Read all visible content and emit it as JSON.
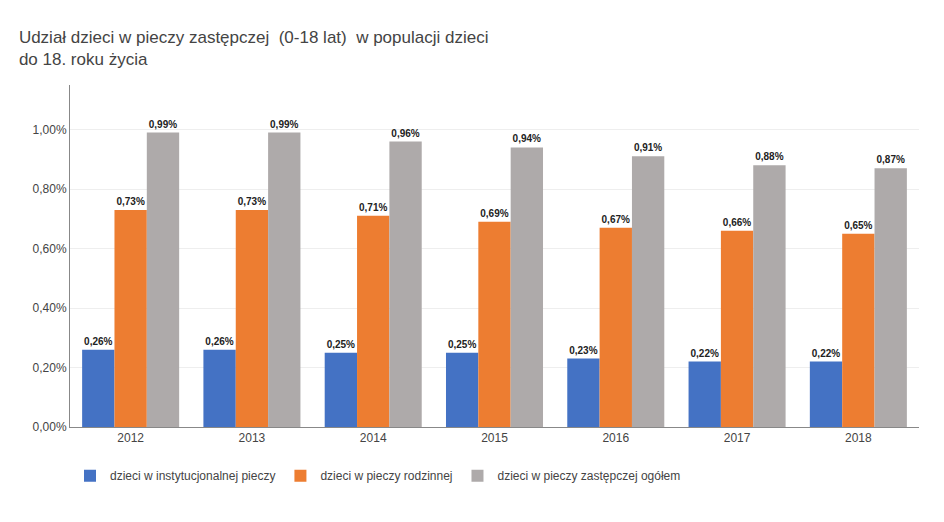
{
  "chart_data": {
    "type": "bar",
    "title": "Udział dzieci w pieczy zastępczej  (0-18 lat)  w populacji dzieci\ndo 18. roku życia",
    "categories": [
      "2012",
      "2013",
      "2014",
      "2015",
      "2016",
      "2017",
      "2018"
    ],
    "series": [
      {
        "name": "dzieci w instytucjonalnej pieczy",
        "color": "#4472C4",
        "values": [
          0.0026,
          0.0026,
          0.0025,
          0.0025,
          0.0023,
          0.0022,
          0.0022
        ],
        "value_labels": [
          "0,26%",
          "0,26%",
          "0,25%",
          "0,25%",
          "0,23%",
          "0,22%",
          "0,22%"
        ]
      },
      {
        "name": "dzieci w pieczy rodzinnej",
        "color": "#ED7D31",
        "values": [
          0.0073,
          0.0073,
          0.0071,
          0.0069,
          0.0067,
          0.0066,
          0.0065
        ],
        "value_labels": [
          "0,73%",
          "0,73%",
          "0,71%",
          "0,69%",
          "0,67%",
          "0,66%",
          "0,65%"
        ]
      },
      {
        "name": "dzieci w pieczy zastępczej ogółem",
        "color": "#AEAAAA",
        "values": [
          0.0099,
          0.0099,
          0.0096,
          0.0094,
          0.0091,
          0.0088,
          0.0087
        ],
        "value_labels": [
          "0,99%",
          "0,99%",
          "0,96%",
          "0,94%",
          "0,91%",
          "0,88%",
          "0,87%"
        ]
      }
    ],
    "ylim": [
      0,
      0.0115
    ],
    "yticks": [
      {
        "value": 0.0,
        "label": "0,00%"
      },
      {
        "value": 0.002,
        "label": "0,20%"
      },
      {
        "value": 0.004,
        "label": "0,40%"
      },
      {
        "value": 0.006,
        "label": "0,60%"
      },
      {
        "value": 0.008,
        "label": "0,80%"
      },
      {
        "value": 0.01,
        "label": "1,00%"
      }
    ],
    "grid": true,
    "data_labels": true,
    "legend": "bottom"
  }
}
